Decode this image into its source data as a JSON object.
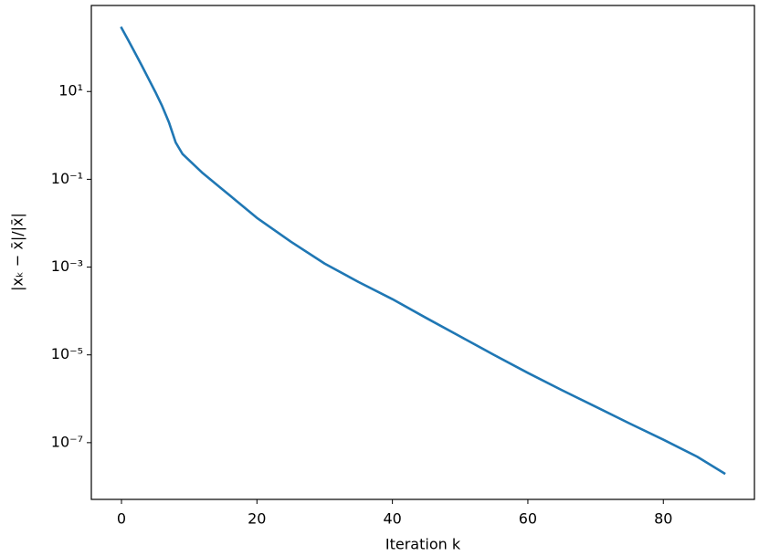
{
  "chart_data": {
    "type": "line",
    "x_label": "Iteration k",
    "y_label": "|xₖ − x̄|/|x̄|",
    "x": [
      0,
      1,
      2,
      3,
      4,
      5,
      6,
      7,
      8,
      9,
      12,
      15,
      20,
      25,
      30,
      35,
      40,
      45,
      50,
      55,
      60,
      65,
      70,
      75,
      80,
      85,
      89
    ],
    "series": [
      {
        "color": "#1f77b4",
        "values": [
          282,
          148,
          75.9,
          38.9,
          19.5,
          9.77,
          4.68,
          2.0,
          0.692,
          0.38,
          0.138,
          0.0575,
          0.0132,
          0.0038,
          0.0012,
          0.000457,
          0.000186,
          6.92e-05,
          2.63e-05,
          1e-05,
          3.89e-06,
          1.58e-06,
          6.61e-07,
          2.75e-07,
          1.17e-07,
          4.79e-08,
          2e-08
        ]
      }
    ],
    "xlim": [
      -4.45,
      93.45
    ],
    "ylim": [
      5.1e-09,
      912
    ],
    "yscale": "log",
    "xticks": [
      0,
      20,
      40,
      60,
      80
    ],
    "yticks": [
      {
        "value": 10,
        "label": "10¹"
      },
      {
        "value": 0.1,
        "label": "10⁻¹"
      },
      {
        "value": 0.001,
        "label": "10⁻³"
      },
      {
        "value": 1e-05,
        "label": "10⁻⁵"
      },
      {
        "value": 1e-07,
        "label": "10⁻⁷"
      }
    ],
    "grid": false
  }
}
